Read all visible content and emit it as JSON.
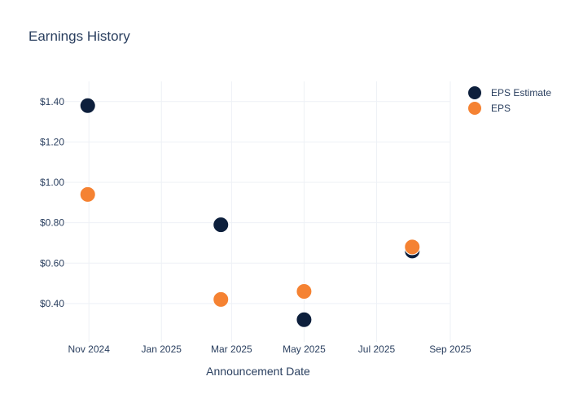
{
  "chart_data": {
    "type": "scatter",
    "title": "Earnings History",
    "xlabel": "Announcement Date",
    "ylabel": "",
    "x_ticks": [
      {
        "date": "2024-11-01",
        "label": "Nov 2024"
      },
      {
        "date": "2025-01-01",
        "label": "Jan 2025"
      },
      {
        "date": "2025-03-01",
        "label": "Mar 2025"
      },
      {
        "date": "2025-05-01",
        "label": "May 2025"
      },
      {
        "date": "2025-07-01",
        "label": "Jul 2025"
      },
      {
        "date": "2025-09-01",
        "label": "Sep 2025"
      }
    ],
    "xlim": [
      "2024-10-12",
      "2025-09-01"
    ],
    "y_ticks": [
      {
        "value": 0.4,
        "label": "$0.40"
      },
      {
        "value": 0.6,
        "label": "$0.60"
      },
      {
        "value": 0.8,
        "label": "$0.80"
      },
      {
        "value": 1.0,
        "label": "$1.00"
      },
      {
        "value": 1.2,
        "label": "$1.20"
      },
      {
        "value": 1.4,
        "label": "$1.40"
      }
    ],
    "ylim": [
      0.21,
      1.5
    ],
    "grid": true,
    "legend_position": "top-right",
    "series": [
      {
        "name": "EPS Estimate",
        "color": "#0d1f3c",
        "points": [
          {
            "x": "2024-10-31",
            "y": 1.38
          },
          {
            "x": "2025-02-20",
            "y": 0.79
          },
          {
            "x": "2025-05-01",
            "y": 0.32
          },
          {
            "x": "2025-07-31",
            "y": 0.66
          }
        ]
      },
      {
        "name": "EPS",
        "color": "#f58232",
        "points": [
          {
            "x": "2024-10-31",
            "y": 0.94
          },
          {
            "x": "2025-02-20",
            "y": 0.42
          },
          {
            "x": "2025-05-01",
            "y": 0.46
          },
          {
            "x": "2025-07-31",
            "y": 0.68
          }
        ]
      }
    ]
  }
}
